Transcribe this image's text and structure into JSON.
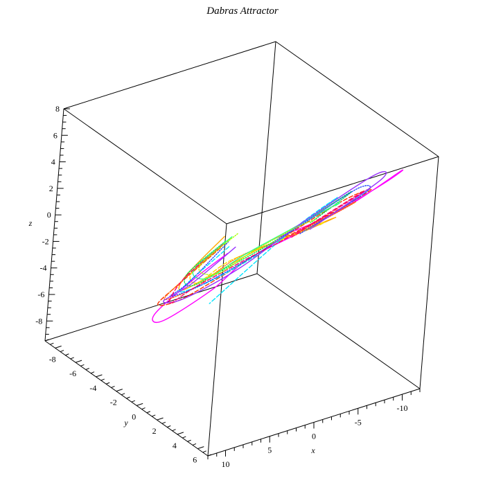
{
  "chart_data": {
    "type": "line",
    "title": "Dabras Attractor",
    "axes": {
      "x": {
        "label": "x",
        "range": [
          -12,
          12
        ],
        "ticks": [
          10,
          5,
          0,
          -5,
          -10
        ],
        "tick_labels": [
          "10",
          "5",
          "0",
          "-5",
          "-10"
        ]
      },
      "y": {
        "label": "y",
        "range": [
          -9,
          7
        ],
        "ticks": [
          -8,
          -6,
          -4,
          -2,
          0,
          2,
          4,
          6
        ],
        "tick_labels": [
          "-8",
          "-6",
          "-4",
          "-2",
          "0",
          "2",
          "4",
          "6"
        ]
      },
      "z": {
        "label": "z",
        "range": [
          -9.5,
          8
        ],
        "ticks": [
          8,
          6,
          4,
          2,
          0,
          -2,
          -4,
          -6,
          -8
        ],
        "tick_labels": [
          "8",
          "6",
          "4",
          "2",
          "0",
          "-2",
          "-4",
          "-6",
          "-8"
        ]
      }
    },
    "grid": false,
    "legend": "none",
    "series_colors": [
      "#ff00ff",
      "#ff3300",
      "#ff6a00",
      "#ffaa00",
      "#ffdd00",
      "#00dd44",
      "#33ff88",
      "#00e5ff",
      "#2244ff",
      "#9933ff",
      "#ff0066",
      "#aaff00"
    ],
    "series": [
      {
        "color": "#ff00ff",
        "points": [
          [
            -6.5,
            -7.5,
            -6.0
          ],
          [
            -4.0,
            -8.5,
            -8.0
          ],
          [
            2.0,
            -7.0,
            -8.5
          ],
          [
            6.0,
            -3.0,
            -6.0
          ],
          [
            5.0,
            0.5,
            -2.0
          ],
          [
            1.0,
            0.5,
            -0.5
          ],
          [
            -3.0,
            3.0,
            2.5
          ],
          [
            -7.5,
            5.5,
            6.0
          ],
          [
            -9.0,
            6.0,
            7.0
          ],
          [
            -6.0,
            3.0,
            3.0
          ],
          [
            -2.0,
            0.0,
            0.0
          ]
        ]
      },
      {
        "color": "#ff3300",
        "points": [
          [
            -5.0,
            -7.0,
            -5.0
          ],
          [
            -2.0,
            -8.0,
            -7.5
          ],
          [
            3.0,
            -6.0,
            -7.0
          ],
          [
            5.5,
            -2.0,
            -4.0
          ],
          [
            3.0,
            0.0,
            -1.5
          ],
          [
            -1.0,
            1.5,
            1.0
          ],
          [
            -5.0,
            4.0,
            4.5
          ],
          [
            -7.0,
            5.0,
            5.5
          ],
          [
            -5.0,
            3.0,
            3.0
          ],
          [
            -1.0,
            0.5,
            0.0
          ]
        ]
      },
      {
        "color": "#ff6a00",
        "points": [
          [
            -4.5,
            -6.5,
            -4.5
          ],
          [
            -1.5,
            -7.5,
            -7.0
          ],
          [
            3.5,
            -5.0,
            -6.0
          ],
          [
            4.5,
            -1.5,
            -3.0
          ],
          [
            1.5,
            0.0,
            -0.5
          ],
          [
            -2.0,
            2.0,
            1.5
          ],
          [
            -5.5,
            4.0,
            4.0
          ],
          [
            -6.0,
            4.0,
            4.0
          ],
          [
            -3.0,
            1.5,
            1.0
          ]
        ]
      },
      {
        "color": "#ffaa00",
        "points": [
          [
            -3.5,
            -5.5,
            -3.0
          ],
          [
            0.0,
            -6.0,
            -5.5
          ],
          [
            3.5,
            -3.5,
            -4.5
          ],
          [
            3.0,
            -1.0,
            -2.0
          ],
          [
            0.0,
            0.5,
            0.0
          ],
          [
            -3.0,
            2.5,
            2.0
          ],
          [
            -5.0,
            3.5,
            3.0
          ],
          [
            -3.5,
            2.0,
            1.5
          ]
        ]
      },
      {
        "color": "#ffdd00",
        "points": [
          [
            -3.0,
            -4.5,
            -2.5
          ],
          [
            0.5,
            -5.0,
            -4.5
          ],
          [
            3.0,
            -2.5,
            -3.5
          ],
          [
            2.0,
            -0.5,
            -1.0
          ],
          [
            -1.0,
            1.0,
            0.5
          ],
          [
            -4.0,
            3.0,
            2.5
          ],
          [
            -4.5,
            2.5,
            2.0
          ]
        ]
      },
      {
        "color": "#00dd44",
        "points": [
          [
            -3.0,
            -5.0,
            -3.0
          ],
          [
            0.5,
            -5.5,
            -5.0
          ],
          [
            3.0,
            -3.0,
            -4.0
          ],
          [
            2.5,
            -0.5,
            -1.5
          ],
          [
            -0.5,
            1.0,
            0.5
          ],
          [
            -4.0,
            3.0,
            3.5
          ],
          [
            -6.0,
            4.0,
            5.0
          ],
          [
            -4.0,
            2.0,
            2.0
          ]
        ]
      },
      {
        "color": "#33ff88",
        "points": [
          [
            -2.5,
            -4.0,
            -2.0
          ],
          [
            1.0,
            -4.5,
            -4.0
          ],
          [
            2.5,
            -2.0,
            -3.0
          ],
          [
            1.0,
            0.0,
            -0.5
          ],
          [
            -2.0,
            1.5,
            1.5
          ],
          [
            -5.0,
            3.5,
            4.0
          ],
          [
            -5.5,
            3.0,
            3.5
          ]
        ]
      },
      {
        "color": "#00e5ff",
        "points": [
          [
            -3.5,
            -5.0,
            -3.5
          ],
          [
            -0.5,
            -6.0,
            -6.0
          ],
          [
            3.0,
            -4.0,
            -5.0
          ],
          [
            3.5,
            -1.0,
            -2.5
          ],
          [
            0.5,
            0.5,
            -0.5
          ],
          [
            -2.5,
            2.0,
            2.0
          ],
          [
            -5.0,
            3.5,
            4.5
          ],
          [
            -3.0,
            1.0,
            1.0
          ],
          [
            2.0,
            -2.0,
            -5.0
          ]
        ]
      },
      {
        "color": "#2244ff",
        "points": [
          [
            -4.0,
            -5.5,
            -3.5
          ],
          [
            -1.0,
            -6.5,
            -6.5
          ],
          [
            3.5,
            -4.5,
            -5.5
          ],
          [
            4.0,
            -1.5,
            -3.0
          ],
          [
            1.0,
            0.5,
            -0.5
          ],
          [
            -2.5,
            2.5,
            2.5
          ],
          [
            -6.0,
            4.5,
            5.5
          ],
          [
            -7.0,
            4.5,
            5.0
          ],
          [
            -3.5,
            1.5,
            1.0
          ]
        ]
      },
      {
        "color": "#9933ff",
        "points": [
          [
            -5.5,
            -6.0,
            -4.5
          ],
          [
            -2.5,
            -7.5,
            -7.5
          ],
          [
            3.0,
            -5.5,
            -6.5
          ],
          [
            5.0,
            -2.0,
            -4.0
          ],
          [
            2.0,
            0.5,
            -1.0
          ],
          [
            -2.0,
            2.5,
            2.5
          ],
          [
            -7.0,
            5.0,
            6.5
          ],
          [
            -8.0,
            5.0,
            6.0
          ],
          [
            -4.0,
            2.0,
            1.5
          ]
        ]
      },
      {
        "color": "#ff0066",
        "points": [
          [
            -4.0,
            -6.0,
            -4.0
          ],
          [
            -1.0,
            -7.0,
            -6.5
          ],
          [
            3.5,
            -4.5,
            -6.0
          ],
          [
            4.5,
            -1.5,
            -3.0
          ],
          [
            1.5,
            0.5,
            -0.5
          ],
          [
            -2.0,
            2.5,
            2.0
          ],
          [
            -6.0,
            4.5,
            5.0
          ],
          [
            -6.5,
            4.0,
            4.5
          ],
          [
            -3.0,
            1.0,
            0.5
          ]
        ]
      },
      {
        "color": "#aaff00",
        "points": [
          [
            -2.5,
            -3.5,
            -1.5
          ],
          [
            1.0,
            -4.0,
            -3.5
          ],
          [
            2.0,
            -1.5,
            -2.5
          ],
          [
            0.5,
            0.5,
            0.0
          ],
          [
            -2.5,
            2.0,
            2.0
          ],
          [
            -4.0,
            2.5,
            2.5
          ]
        ]
      }
    ]
  }
}
